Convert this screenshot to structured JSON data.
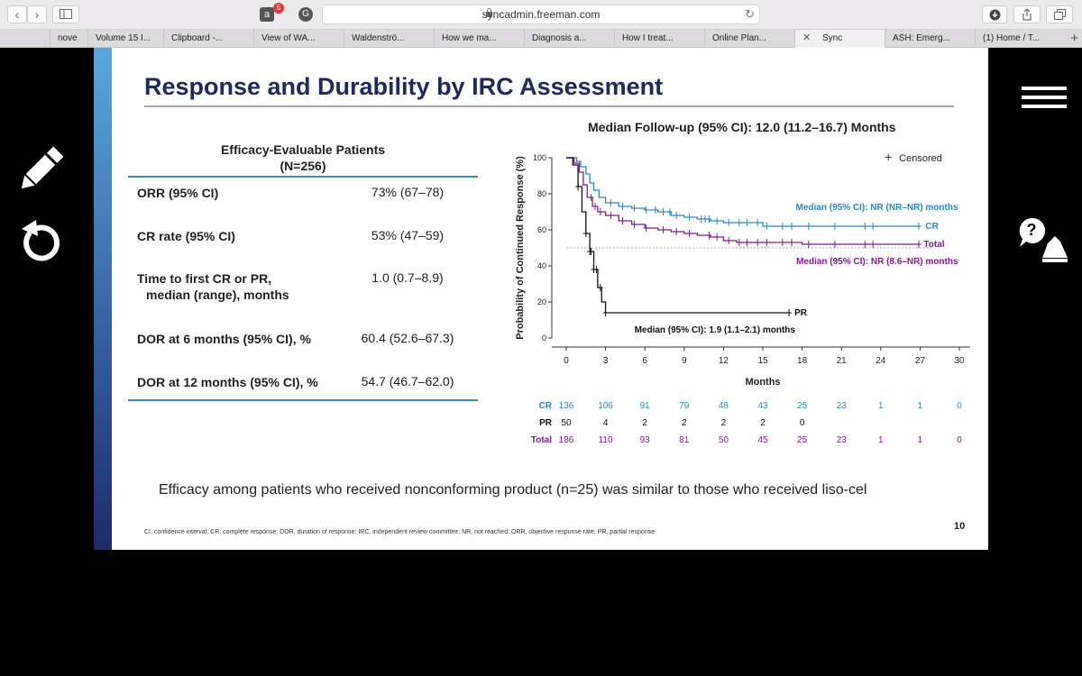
{
  "browser": {
    "url": "syncadmin.freeman.com",
    "ext_badge": "6",
    "ext_a": "a",
    "ext_g": "G",
    "tabs": [
      {
        "label": "nove"
      },
      {
        "label": "Volume 15 I..."
      },
      {
        "label": "Clipboard -..."
      },
      {
        "label": "View of WA..."
      },
      {
        "label": "Waldenströ..."
      },
      {
        "label": "How we ma..."
      },
      {
        "label": "Diagnosis a..."
      },
      {
        "label": "How I treat..."
      },
      {
        "label": "Online Plan..."
      },
      {
        "label": "Sync",
        "active": true
      },
      {
        "label": "ASH: Emerg..."
      },
      {
        "label": "(1) Home / T..."
      }
    ]
  },
  "slide": {
    "title": "Response and Durability by IRC Assessment",
    "table": {
      "heading": "Efficacy-Evaluable Patients",
      "subheading": "(N=256)",
      "rows": [
        {
          "label": "ORR (95% CI)",
          "value": "73% (67–78)"
        },
        {
          "label": "CR rate (95% CI)",
          "value": "53% (47–59)"
        },
        {
          "label": "Time to first CR or PR,",
          "label2": "median (range), months",
          "value": "1.0 (0.7–8.9)"
        },
        {
          "label": "DOR at 6 months (95% CI), %",
          "value": "60.4 (52.6–67.3)"
        },
        {
          "label": "DOR at 12 months (95% CI), %",
          "value": "54.7 (46.7–62.0)"
        }
      ]
    },
    "footer_message": "Efficacy among patients who received nonconforming product (n=25) was similar to those who received liso-cel",
    "abbreviations": "CI, confidence interval; CR, complete response; DOR, duration of response; IRC, independent review committee; NR, not reached; ORR, objective response rate; PR, partial response.",
    "page_number": "10"
  },
  "colors": {
    "cr": "#2e86c1",
    "total": "#7b1e8c",
    "pr": "#111111",
    "accent": "#1f2a61"
  },
  "chart_data": {
    "type": "line",
    "title": "Median Follow-up (95% CI): 12.0 (11.2–16.7) Months",
    "xlabel": "Months",
    "ylabel": "Probability of Continued Response (%)",
    "xlim": [
      0,
      30
    ],
    "ylim": [
      0,
      100
    ],
    "xticks": [
      0,
      3,
      6,
      9,
      12,
      15,
      18,
      21,
      24,
      27,
      30
    ],
    "yticks": [
      0,
      20,
      40,
      60,
      80,
      100
    ],
    "reference_line_y": 50,
    "legend": {
      "symbol": "+",
      "label": "Censored",
      "placement": "top-right"
    },
    "series": [
      {
        "name": "CR",
        "color": "#2e86c1",
        "x": [
          0,
          0.8,
          1.1,
          1.5,
          1.8,
          2.1,
          2.5,
          3.0,
          4.0,
          5.0,
          6.0,
          7.0,
          8.0,
          9.0,
          10.0,
          11.0,
          12.0,
          13.0,
          15.0,
          18.0,
          27.0
        ],
        "y": [
          100,
          98,
          95,
          91,
          86,
          82,
          78,
          75,
          73,
          72,
          71,
          70,
          68,
          67,
          66,
          65,
          64,
          64,
          62,
          62,
          62
        ],
        "annotation": "Median (95% CI): NR (NR–NR) months"
      },
      {
        "name": "Total",
        "color": "#7b1e8c",
        "x": [
          0,
          0.6,
          1.0,
          1.3,
          1.6,
          2.0,
          2.4,
          3.0,
          4.0,
          5.0,
          6.0,
          7.0,
          8.0,
          9.0,
          10.0,
          11.0,
          12.0,
          13.0,
          15.0,
          18.0,
          27.0
        ],
        "y": [
          100,
          97,
          92,
          85,
          78,
          73,
          70,
          68,
          65,
          63,
          61,
          60,
          59,
          58,
          57,
          56,
          54,
          53,
          53,
          52,
          52
        ],
        "annotation": "Median (95% CI): NR (8.6–NR) months"
      },
      {
        "name": "PR",
        "color": "#111111",
        "x": [
          0,
          0.5,
          0.9,
          1.2,
          1.5,
          1.8,
          2.1,
          2.4,
          2.7,
          3.0,
          4.0,
          5.0,
          17.0
        ],
        "y": [
          100,
          96,
          84,
          70,
          58,
          48,
          38,
          28,
          20,
          14,
          14,
          14,
          14
        ],
        "annotation": "Median (95% CI): 1.9 (1.1–2.1) months"
      }
    ],
    "censor_marks": {
      "CR": [
        3.4,
        4.3,
        5.2,
        6.1,
        6.8,
        7.4,
        7.9,
        8.4,
        9.4,
        10.3,
        10.6,
        10.9,
        11.5,
        12.4,
        13.2,
        13.8,
        14.6,
        15.3,
        16.5,
        17.2,
        18.5,
        20.5,
        22.8,
        23.4,
        26.9
      ],
      "Total": [
        1.9,
        2.2,
        2.6,
        3.4,
        4.3,
        5.2,
        6.1,
        7.4,
        8.4,
        9.4,
        10.9,
        11.5,
        12.4,
        13.2,
        13.8,
        14.6,
        15.3,
        16.5,
        17.2,
        18.5,
        20.5,
        22.8,
        23.4,
        26.9
      ],
      "PR": [
        0.9,
        1.5,
        1.8,
        1.9,
        2.1,
        2.3,
        2.6,
        3.0,
        17.0
      ]
    },
    "at_risk": {
      "CR": [
        136,
        106,
        91,
        79,
        48,
        43,
        25,
        23,
        1,
        1,
        0
      ],
      "PR": [
        50,
        4,
        2,
        2,
        2,
        2,
        0
      ],
      "Total": [
        186,
        110,
        93,
        81,
        50,
        45,
        25,
        23,
        1,
        1,
        0
      ]
    }
  }
}
